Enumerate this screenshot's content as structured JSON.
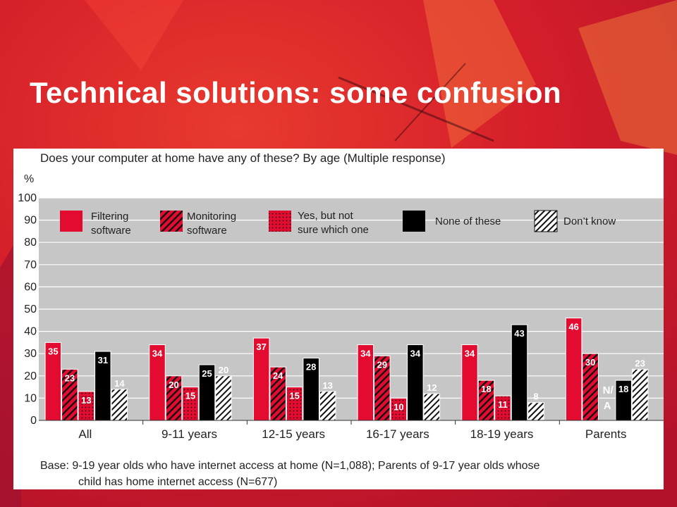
{
  "slide": {
    "title": "Technical solutions: some confusion"
  },
  "colors": {
    "filtering": "#e30b2f",
    "monitoring": "#e30b2f",
    "yes_not_sure": "#e30b2f",
    "none": "#000000",
    "dont_know": "#ffffff",
    "plot_bg": "#c6c6c6",
    "background": "#d51e2a"
  },
  "chart_data": {
    "type": "bar",
    "title": "Does your computer at home have any of these? By age (Multiple response)",
    "ylabel": "%",
    "ylim": [
      0,
      100
    ],
    "yticks": [
      0,
      10,
      20,
      30,
      40,
      50,
      60,
      70,
      80,
      90,
      100
    ],
    "grid": true,
    "legend_position": "top",
    "categories": [
      "All",
      "9-11 years",
      "12-15 years",
      "16-17 years",
      "18-19 years",
      "Parents"
    ],
    "series": [
      {
        "name": "Filtering software",
        "pattern": "solid-red",
        "values": [
          35,
          34,
          37,
          34,
          34,
          46
        ]
      },
      {
        "name": "Monitoring software",
        "pattern": "hatched-red",
        "values": [
          23,
          20,
          24,
          29,
          18,
          30
        ]
      },
      {
        "name": "Yes, but not sure which one",
        "pattern": "dotted-red",
        "values": [
          13,
          15,
          15,
          10,
          11,
          null
        ]
      },
      {
        "name": "None of these",
        "pattern": "solid-black",
        "values": [
          31,
          25,
          28,
          34,
          43,
          18
        ]
      },
      {
        "name": "Don’t know",
        "pattern": "hatched-white",
        "values": [
          14,
          20,
          13,
          12,
          8,
          23
        ]
      }
    ],
    "annotations": [
      {
        "category": "Parents",
        "series": "Yes, but not sure which one",
        "text": "N/A"
      }
    ],
    "base_note": "Base:  9-19 year olds who have internet access at home (N=1,088); Parents of 9-17 year olds whose child has home internet access (N=677)"
  }
}
